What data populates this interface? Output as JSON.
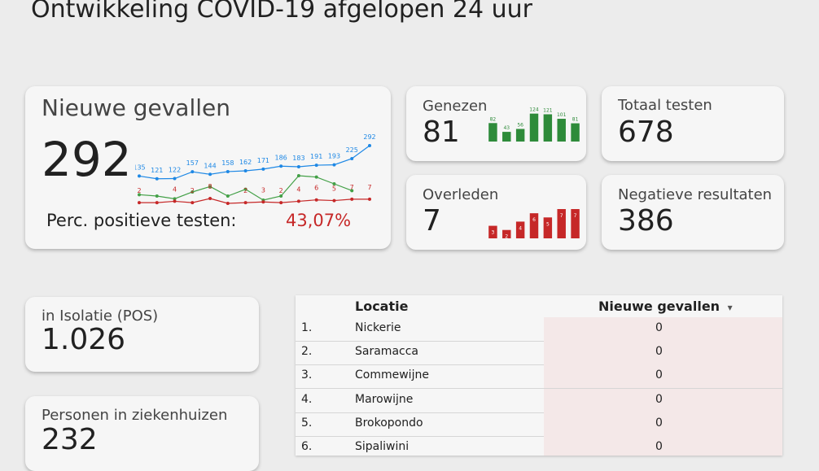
{
  "page": {
    "title": "Ontwikkeling COVID-19 afgelopen 24 uur"
  },
  "nieuwe": {
    "label": "Nieuwe gevallen",
    "value": "292",
    "pos_label": "Perc. positieve testen:",
    "pos_value": "43,07%",
    "chart_data": {
      "type": "line",
      "series": [
        {
          "color": "#1e88e5",
          "values": [
            135,
            121,
            122,
            157,
            144,
            158,
            162,
            171,
            186,
            183,
            191,
            193,
            225,
            292
          ],
          "labels": [
            "135",
            "121",
            "122",
            "157",
            "144",
            "158",
            "162",
            "171",
            "186",
            "183",
            "191",
            "193",
            "225",
            "292"
          ]
        },
        {
          "color": "#43a047",
          "values": [
            16,
            15,
            13,
            18,
            22,
            15,
            20,
            12,
            15,
            30,
            29,
            24,
            19,
            null
          ],
          "labels": []
        },
        {
          "color": "#c62828",
          "values": [
            2,
            2,
            4,
            2,
            8,
            1,
            2,
            3,
            2,
            4,
            6,
            5,
            7,
            7
          ],
          "labels": [
            "2",
            "",
            "4",
            "2",
            "8",
            "",
            "2",
            "3",
            "2",
            "4",
            "6",
            "5",
            "7",
            "7"
          ]
        }
      ]
    }
  },
  "genezen": {
    "label": "Genezen",
    "value": "81",
    "chart_data": {
      "type": "bar",
      "color": "#2e8b3a",
      "values": [
        82,
        43,
        56,
        124,
        121,
        101,
        81
      ],
      "labels": [
        "82",
        "43",
        "56",
        "124",
        "121",
        "101",
        "81"
      ]
    }
  },
  "overleden": {
    "label": "Overleden",
    "value": "7",
    "chart_data": {
      "type": "bar",
      "color": "#c62828",
      "values": [
        3,
        2,
        4,
        6,
        5,
        7,
        7
      ],
      "labels": [
        "3",
        "2",
        "4",
        "6",
        "5",
        "7",
        "7"
      ]
    }
  },
  "totaal": {
    "label": "Totaal testen",
    "value": "678"
  },
  "negatief": {
    "label": "Negatieve resultaten",
    "value": "386"
  },
  "isolatie": {
    "label": "in Isolatie (POS)",
    "value": "1.026"
  },
  "ziekenhuis": {
    "label": "Personen in ziekenhuizen",
    "value": "232"
  },
  "table": {
    "col_locatie": "Locatie",
    "col_nieuwe": "Nieuwe gevallen",
    "sort_icon": "▾",
    "rows": [
      {
        "idx": "1.",
        "name": "Nickerie",
        "value": "0"
      },
      {
        "idx": "2.",
        "name": "Saramacca",
        "value": "0"
      },
      {
        "idx": "3.",
        "name": "Commewijne",
        "value": "0"
      },
      {
        "idx": "4.",
        "name": "Marowijne",
        "value": "0"
      },
      {
        "idx": "5.",
        "name": "Brokopondo",
        "value": "0"
      },
      {
        "idx": "6.",
        "name": "Sipaliwini",
        "value": "0"
      }
    ]
  }
}
